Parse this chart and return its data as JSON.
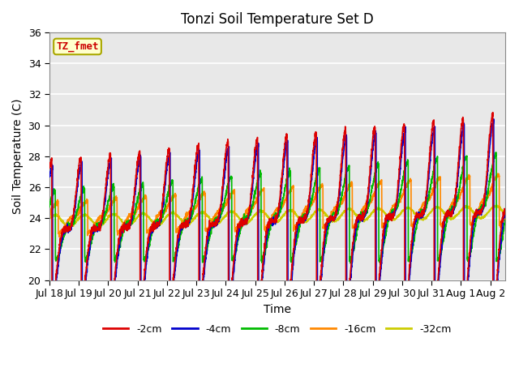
{
  "title": "Tonzi Soil Temperature Set D",
  "xlabel": "Time",
  "ylabel": "Soil Temperature (C)",
  "ylim": [
    20,
    36
  ],
  "xlim_days": 15.5,
  "legend_label": "TZ_fmet",
  "series_labels": [
    "-2cm",
    "-4cm",
    "-8cm",
    "-16cm",
    "-32cm"
  ],
  "series_colors": [
    "#dd0000",
    "#0000cc",
    "#00bb00",
    "#ff8800",
    "#cccc00"
  ],
  "xtick_labels": [
    "Jul 18",
    "Jul 19",
    "Jul 20",
    "Jul 21",
    "Jul 22",
    "Jul 23",
    "Jul 24",
    "Jul 25",
    "Jul 26",
    "Jul 27",
    "Jul 28",
    "Jul 29",
    "Jul 30",
    "Jul 31",
    "Aug 1",
    "Aug 2"
  ],
  "plot_bg_color": "#e8e8e8",
  "grid_color": "#ffffff",
  "line_width": 1.2
}
